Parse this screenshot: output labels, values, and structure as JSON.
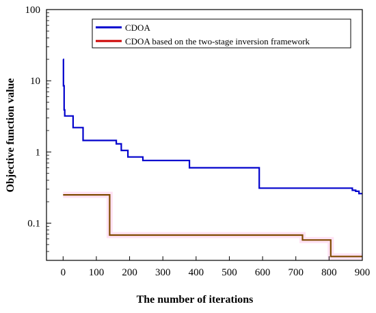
{
  "chart_data": {
    "type": "line",
    "xlabel": "The number of iterations",
    "ylabel": "Objective function value",
    "xlim": [
      -50,
      900
    ],
    "ylim": [
      0.03,
      100
    ],
    "yscale": "log",
    "xticks": [
      0,
      100,
      200,
      300,
      400,
      500,
      600,
      700,
      800,
      900
    ],
    "xtick_labels": [
      "0",
      "100",
      "200",
      "300",
      "400",
      "500",
      "600",
      "700",
      "800",
      "900"
    ],
    "yticks": [
      0.1,
      1,
      10,
      100
    ],
    "ytick_labels": [
      "0.1",
      "1",
      "10",
      "100"
    ],
    "grid": false,
    "legend_position": "top",
    "series": [
      {
        "name": "CDOA",
        "color": "#0000cc",
        "step": true,
        "x": [
          0,
          1,
          3,
          5,
          25,
          30,
          60,
          150,
          160,
          175,
          195,
          240,
          380,
          520,
          590,
          860,
          870,
          880,
          890,
          900
        ],
        "y": [
          20,
          8.5,
          3.9,
          3.2,
          3.2,
          2.2,
          1.45,
          1.45,
          1.3,
          1.05,
          0.85,
          0.76,
          0.6,
          0.6,
          0.31,
          0.31,
          0.29,
          0.28,
          0.26,
          0.26
        ]
      },
      {
        "name": "CDOA based on the two-stage inversion framework",
        "color": "#cc0000",
        "overlay_color": "#7f4a00",
        "step": true,
        "x": [
          0,
          140,
          710,
          720,
          805,
          900
        ],
        "y": [
          0.25,
          0.068,
          0.068,
          0.058,
          0.034,
          0.034
        ]
      }
    ]
  }
}
